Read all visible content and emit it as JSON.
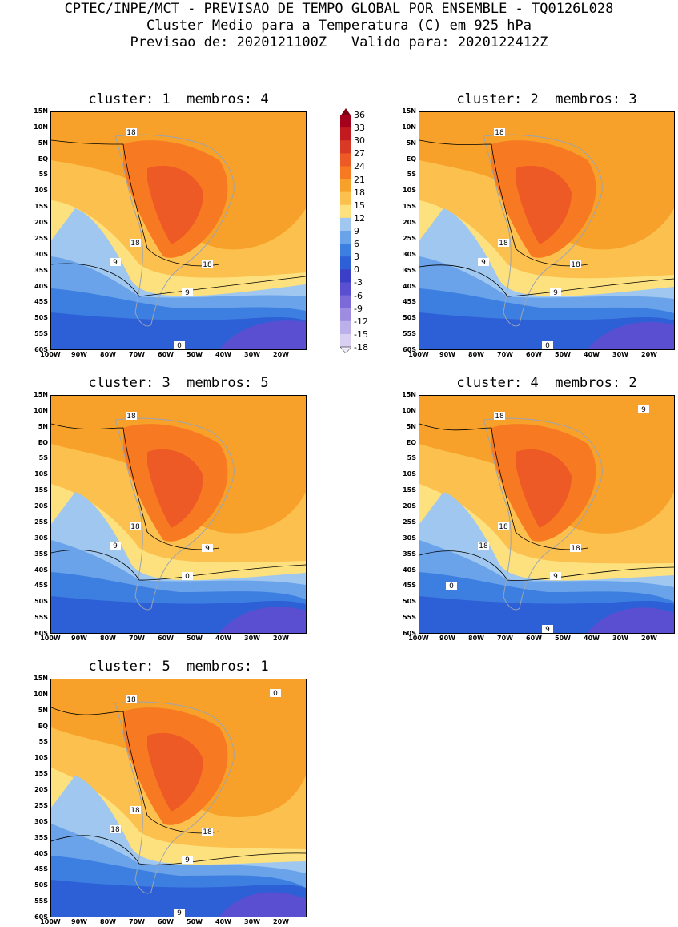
{
  "header": {
    "line1": "CPTEC/INPE/MCT - PREVISAO DE TEMPO GLOBAL POR ENSEMBLE - TQ0126L028",
    "line2": "Cluster Medio para a Temperatura (C) em 925 hPa",
    "line3": "Previsao de: 2020121100Z   Valido para: 2020122412Z"
  },
  "panels": [
    {
      "title": "cluster: 1  membros: 4",
      "contours": [
        "18",
        "18",
        "18",
        "9",
        "9",
        "0"
      ]
    },
    {
      "title": "cluster: 2  membros: 3",
      "contours": [
        "18",
        "18",
        "18",
        "9",
        "9",
        "0"
      ]
    },
    {
      "title": "cluster: 3  membros: 5",
      "contours": [
        "18",
        "18",
        "9",
        "9",
        "0"
      ]
    },
    {
      "title": "cluster: 4  membros: 2",
      "contours": [
        "18",
        "18",
        "18",
        "18",
        "9",
        "9",
        "9",
        "0"
      ]
    },
    {
      "title": "cluster: 5  membros: 1",
      "contours": [
        "18",
        "18",
        "18",
        "18",
        "9",
        "9",
        "0"
      ]
    }
  ],
  "y_ticks": [
    "15N",
    "10N",
    "5N",
    "EQ",
    "5S",
    "10S",
    "15S",
    "20S",
    "25S",
    "30S",
    "35S",
    "40S",
    "45S",
    "50S",
    "55S",
    "60S"
  ],
  "x_ticks": [
    "100W",
    "90W",
    "80W",
    "70W",
    "60W",
    "50W",
    "40W",
    "30W",
    "20W"
  ],
  "colorbar": {
    "labels": [
      "36",
      "33",
      "30",
      "27",
      "24",
      "21",
      "18",
      "15",
      "12",
      "9",
      "6",
      "3",
      "0",
      "-3",
      "-6",
      "-9",
      "-12",
      "-15",
      "-18"
    ],
    "colors": [
      "#a5001c",
      "#c21a1f",
      "#d93a25",
      "#ee5a25",
      "#f77a22",
      "#f7a12a",
      "#fcc04f",
      "#fde17e",
      "#9fc7ef",
      "#6aa3ea",
      "#3d7fe0",
      "#2d5fd6",
      "#3b3fc8",
      "#5a4fd0",
      "#7b6ad8",
      "#9d8ce0",
      "#bcb0ea",
      "#d8cff2"
    ]
  }
}
